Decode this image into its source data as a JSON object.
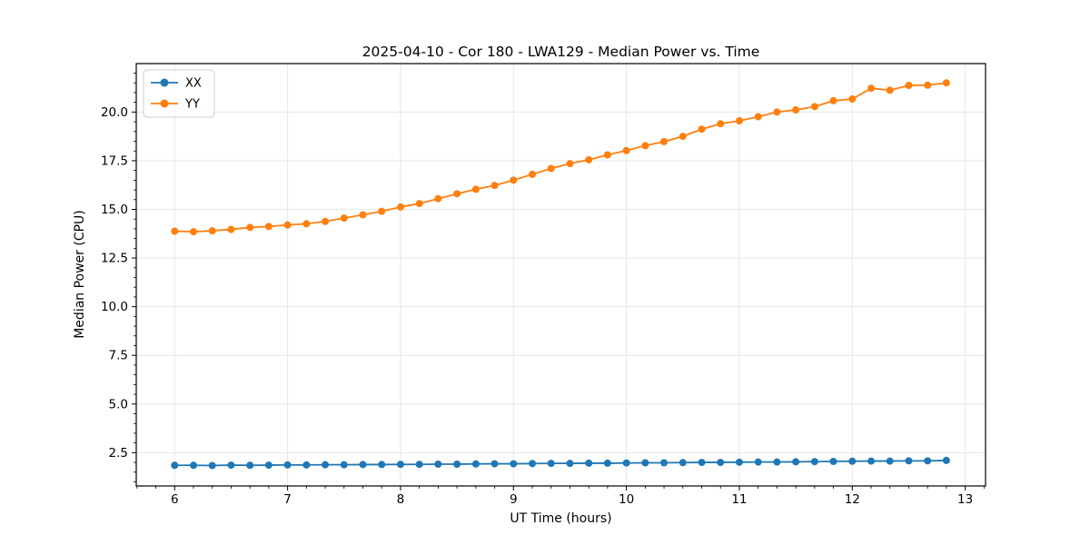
{
  "figure": {
    "background": "#ffffff",
    "frame_color": "#000000",
    "grid_color": "#e6e6e6"
  },
  "chart_data": {
    "type": "line",
    "title": "2025-04-10 - Cor 180 - LWA129 - Median Power vs. Time",
    "xlabel": "UT Time (hours)",
    "ylabel": "Median Power (CPU)",
    "xlim": [
      5.66,
      13.18
    ],
    "ylim": [
      0.79,
      22.49
    ],
    "xticks": [
      6,
      7,
      8,
      9,
      10,
      11,
      12,
      13
    ],
    "xtick_labels": [
      "6",
      "7",
      "8",
      "9",
      "10",
      "11",
      "12",
      "13"
    ],
    "yticks": [
      2.5,
      5.0,
      7.5,
      10.0,
      12.5,
      15.0,
      17.5,
      20.0
    ],
    "ytick_labels": [
      "2.5",
      "5.0",
      "7.5",
      "10.0",
      "12.5",
      "15.0",
      "17.5",
      "20.0"
    ],
    "x_minor_step": 0.1666667,
    "y_minor_step": 0.5,
    "grid": true,
    "legend": {
      "position": "upper left",
      "entries": [
        "XX",
        "YY"
      ]
    },
    "x": [
      6.0,
      6.167,
      6.333,
      6.5,
      6.667,
      6.833,
      7.0,
      7.167,
      7.333,
      7.5,
      7.667,
      7.833,
      8.0,
      8.167,
      8.333,
      8.5,
      8.667,
      8.833,
      9.0,
      9.167,
      9.333,
      9.5,
      9.667,
      9.833,
      10.0,
      10.167,
      10.333,
      10.5,
      10.667,
      10.833,
      11.0,
      11.167,
      11.333,
      11.5,
      11.667,
      11.833,
      12.0,
      12.167,
      12.333,
      12.5,
      12.667,
      12.833
    ],
    "series": [
      {
        "name": "XX",
        "color": "#1f77b4",
        "values": [
          1.85,
          1.85,
          1.84,
          1.86,
          1.85,
          1.86,
          1.87,
          1.87,
          1.88,
          1.88,
          1.89,
          1.89,
          1.9,
          1.9,
          1.91,
          1.91,
          1.92,
          1.93,
          1.93,
          1.94,
          1.95,
          1.95,
          1.96,
          1.96,
          1.97,
          1.98,
          1.98,
          1.99,
          2.0,
          2.0,
          2.01,
          2.02,
          2.02,
          2.03,
          2.04,
          2.05,
          2.06,
          2.07,
          2.07,
          2.08,
          2.08,
          2.1
        ]
      },
      {
        "name": "YY",
        "color": "#ff7f0e",
        "values": [
          13.88,
          13.85,
          13.9,
          13.97,
          14.07,
          14.12,
          14.2,
          14.26,
          14.38,
          14.55,
          14.72,
          14.9,
          15.12,
          15.3,
          15.55,
          15.8,
          16.03,
          16.23,
          16.5,
          16.8,
          17.1,
          17.35,
          17.55,
          17.8,
          18.02,
          18.27,
          18.48,
          18.75,
          19.12,
          19.4,
          19.55,
          19.76,
          20.0,
          20.11,
          20.28,
          20.58,
          20.67,
          21.22,
          21.12,
          21.37,
          21.38,
          21.5
        ]
      }
    ]
  }
}
